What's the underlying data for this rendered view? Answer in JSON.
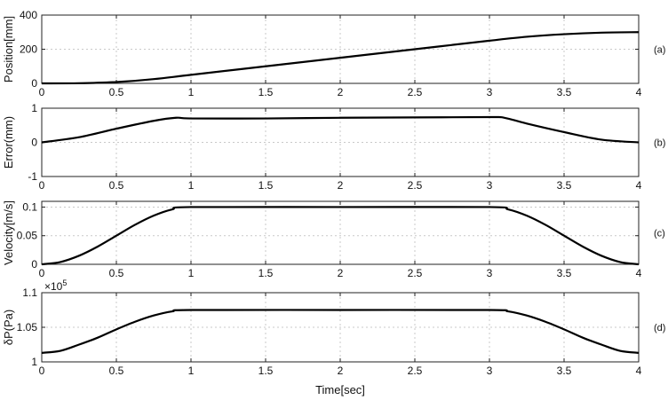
{
  "chart_data": [
    {
      "type": "line",
      "panel_label": "(a)",
      "ylabel": "Position[mm]",
      "xlabel": "",
      "xlim": [
        0,
        4
      ],
      "ylim": [
        0,
        400
      ],
      "xticks": [
        "0",
        "0.5",
        "1",
        "1.5",
        "2",
        "2.5",
        "3",
        "3.5",
        "4"
      ],
      "yticks": [
        "0",
        "200",
        "400"
      ],
      "ytick_values": [
        0,
        200,
        400
      ],
      "grid": true,
      "series": [
        {
          "x": [
            0,
            0.25,
            0.5,
            0.75,
            1,
            1.5,
            2,
            2.5,
            3,
            3.25,
            3.5,
            3.75,
            4
          ],
          "y": [
            0,
            1,
            8,
            25,
            50,
            100,
            150,
            200,
            250,
            273,
            288,
            297,
            300
          ]
        }
      ]
    },
    {
      "type": "line",
      "panel_label": "(b)",
      "ylabel": "Error(mm)",
      "xlabel": "",
      "xlim": [
        0,
        4
      ],
      "ylim": [
        -1,
        1
      ],
      "xticks": [
        "0",
        "0.5",
        "1",
        "1.5",
        "2",
        "2.5",
        "3",
        "3.5",
        "4"
      ],
      "yticks": [
        "1",
        "0",
        "-1"
      ],
      "ytick_values": [
        1,
        0,
        -1
      ],
      "grid": true,
      "series": [
        {
          "x": [
            0,
            0.25,
            0.5,
            0.75,
            0.9,
            1,
            1.5,
            2,
            2.5,
            3,
            3.1,
            3.25,
            3.5,
            3.75,
            4
          ],
          "y": [
            0,
            0.15,
            0.4,
            0.63,
            0.72,
            0.7,
            0.7,
            0.72,
            0.73,
            0.74,
            0.72,
            0.55,
            0.3,
            0.08,
            0
          ]
        }
      ]
    },
    {
      "type": "line",
      "panel_label": "(c)",
      "ylabel": "Velocity[m/s]",
      "xlabel": "",
      "xlim": [
        0,
        4
      ],
      "ylim": [
        0,
        0.11
      ],
      "xticks": [
        "0",
        "0.5",
        "1",
        "1.5",
        "2",
        "2.5",
        "3",
        "3.5",
        "4"
      ],
      "yticks": [
        "0.1",
        "0.05",
        "0"
      ],
      "ytick_values": [
        0.1,
        0.05,
        0
      ],
      "grid": true,
      "series": [
        {
          "x": [
            0,
            0.125,
            0.25,
            0.375,
            0.5,
            0.625,
            0.75,
            0.875,
            1,
            2,
            3,
            3.125,
            3.25,
            3.375,
            3.5,
            3.625,
            3.75,
            3.875,
            4
          ],
          "y": [
            0,
            0.004,
            0.015,
            0.031,
            0.05,
            0.069,
            0.085,
            0.096,
            0.1,
            0.1,
            0.1,
            0.096,
            0.085,
            0.069,
            0.05,
            0.031,
            0.015,
            0.004,
            0
          ]
        }
      ]
    },
    {
      "type": "line",
      "panel_label": "(d)",
      "ylabel": "δP(Pa)",
      "xlabel": "Time[sec]",
      "xlim": [
        0,
        4
      ],
      "ylim": [
        1.0,
        1.1
      ],
      "y_exponent_label": "×10",
      "y_exponent": "5",
      "xticks": [
        "0",
        "0.5",
        "1",
        "1.5",
        "2",
        "2.5",
        "3",
        "3.5",
        "4"
      ],
      "yticks": [
        "1.1",
        "1.05",
        "1"
      ],
      "ytick_values": [
        1.1,
        1.05,
        1.0
      ],
      "grid": true,
      "series": [
        {
          "x": [
            0,
            0.125,
            0.25,
            0.375,
            0.5,
            0.625,
            0.75,
            0.875,
            1,
            2,
            3,
            3.125,
            3.25,
            3.375,
            3.5,
            3.625,
            3.75,
            3.875,
            4
          ],
          "y": [
            1.013,
            1.016,
            1.025,
            1.035,
            1.047,
            1.058,
            1.067,
            1.073,
            1.075,
            1.075,
            1.075,
            1.073,
            1.067,
            1.058,
            1.047,
            1.035,
            1.025,
            1.016,
            1.013
          ]
        }
      ]
    }
  ]
}
